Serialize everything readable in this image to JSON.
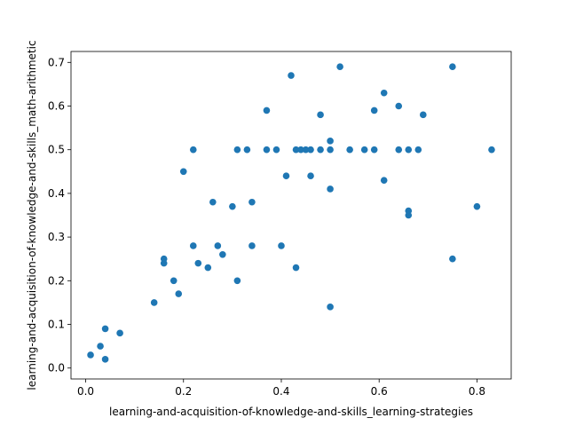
{
  "chart_data": {
    "type": "scatter",
    "title": "",
    "xlabel": "learning-and-acquisition-of-knowledge-and-skills_learning-strategies",
    "ylabel": "learning-and-acquisition-of-knowledge-and-skills_math-arithmetic",
    "xlim": [
      -0.03,
      0.87
    ],
    "ylim": [
      -0.025,
      0.725
    ],
    "xticks": [
      0.0,
      0.2,
      0.4,
      0.6,
      0.8
    ],
    "xtick_labels": [
      "0.0",
      "0.2",
      "0.4",
      "0.6",
      "0.8"
    ],
    "yticks": [
      0.0,
      0.1,
      0.2,
      0.3,
      0.4,
      0.5,
      0.6,
      0.7
    ],
    "ytick_labels": [
      "0.0",
      "0.1",
      "0.2",
      "0.3",
      "0.4",
      "0.5",
      "0.6",
      "0.7"
    ],
    "grid": false,
    "legend": "none",
    "marker_color": "#1f77b4",
    "points": [
      {
        "x": 0.01,
        "y": 0.03
      },
      {
        "x": 0.03,
        "y": 0.05
      },
      {
        "x": 0.04,
        "y": 0.02
      },
      {
        "x": 0.04,
        "y": 0.09
      },
      {
        "x": 0.07,
        "y": 0.08
      },
      {
        "x": 0.14,
        "y": 0.15
      },
      {
        "x": 0.16,
        "y": 0.24
      },
      {
        "x": 0.16,
        "y": 0.25
      },
      {
        "x": 0.18,
        "y": 0.2
      },
      {
        "x": 0.19,
        "y": 0.17
      },
      {
        "x": 0.2,
        "y": 0.45
      },
      {
        "x": 0.22,
        "y": 0.28
      },
      {
        "x": 0.22,
        "y": 0.5
      },
      {
        "x": 0.23,
        "y": 0.24
      },
      {
        "x": 0.25,
        "y": 0.23
      },
      {
        "x": 0.26,
        "y": 0.38
      },
      {
        "x": 0.27,
        "y": 0.28
      },
      {
        "x": 0.28,
        "y": 0.26
      },
      {
        "x": 0.3,
        "y": 0.37
      },
      {
        "x": 0.31,
        "y": 0.2
      },
      {
        "x": 0.31,
        "y": 0.5
      },
      {
        "x": 0.33,
        "y": 0.5
      },
      {
        "x": 0.34,
        "y": 0.38
      },
      {
        "x": 0.34,
        "y": 0.28
      },
      {
        "x": 0.37,
        "y": 0.59
      },
      {
        "x": 0.37,
        "y": 0.5
      },
      {
        "x": 0.39,
        "y": 0.5
      },
      {
        "x": 0.4,
        "y": 0.28
      },
      {
        "x": 0.41,
        "y": 0.44
      },
      {
        "x": 0.42,
        "y": 0.67
      },
      {
        "x": 0.43,
        "y": 0.5
      },
      {
        "x": 0.43,
        "y": 0.23
      },
      {
        "x": 0.44,
        "y": 0.5
      },
      {
        "x": 0.45,
        "y": 0.5
      },
      {
        "x": 0.46,
        "y": 0.5
      },
      {
        "x": 0.46,
        "y": 0.44
      },
      {
        "x": 0.48,
        "y": 0.58
      },
      {
        "x": 0.48,
        "y": 0.5
      },
      {
        "x": 0.5,
        "y": 0.5
      },
      {
        "x": 0.5,
        "y": 0.52
      },
      {
        "x": 0.5,
        "y": 0.41
      },
      {
        "x": 0.5,
        "y": 0.14
      },
      {
        "x": 0.52,
        "y": 0.69
      },
      {
        "x": 0.54,
        "y": 0.5
      },
      {
        "x": 0.57,
        "y": 0.5
      },
      {
        "x": 0.59,
        "y": 0.59
      },
      {
        "x": 0.59,
        "y": 0.5
      },
      {
        "x": 0.61,
        "y": 0.63
      },
      {
        "x": 0.61,
        "y": 0.43
      },
      {
        "x": 0.64,
        "y": 0.6
      },
      {
        "x": 0.64,
        "y": 0.5
      },
      {
        "x": 0.66,
        "y": 0.5
      },
      {
        "x": 0.66,
        "y": 0.36
      },
      {
        "x": 0.66,
        "y": 0.35
      },
      {
        "x": 0.68,
        "y": 0.5
      },
      {
        "x": 0.69,
        "y": 0.58
      },
      {
        "x": 0.75,
        "y": 0.69
      },
      {
        "x": 0.75,
        "y": 0.25
      },
      {
        "x": 0.8,
        "y": 0.37
      },
      {
        "x": 0.83,
        "y": 0.5
      }
    ]
  }
}
